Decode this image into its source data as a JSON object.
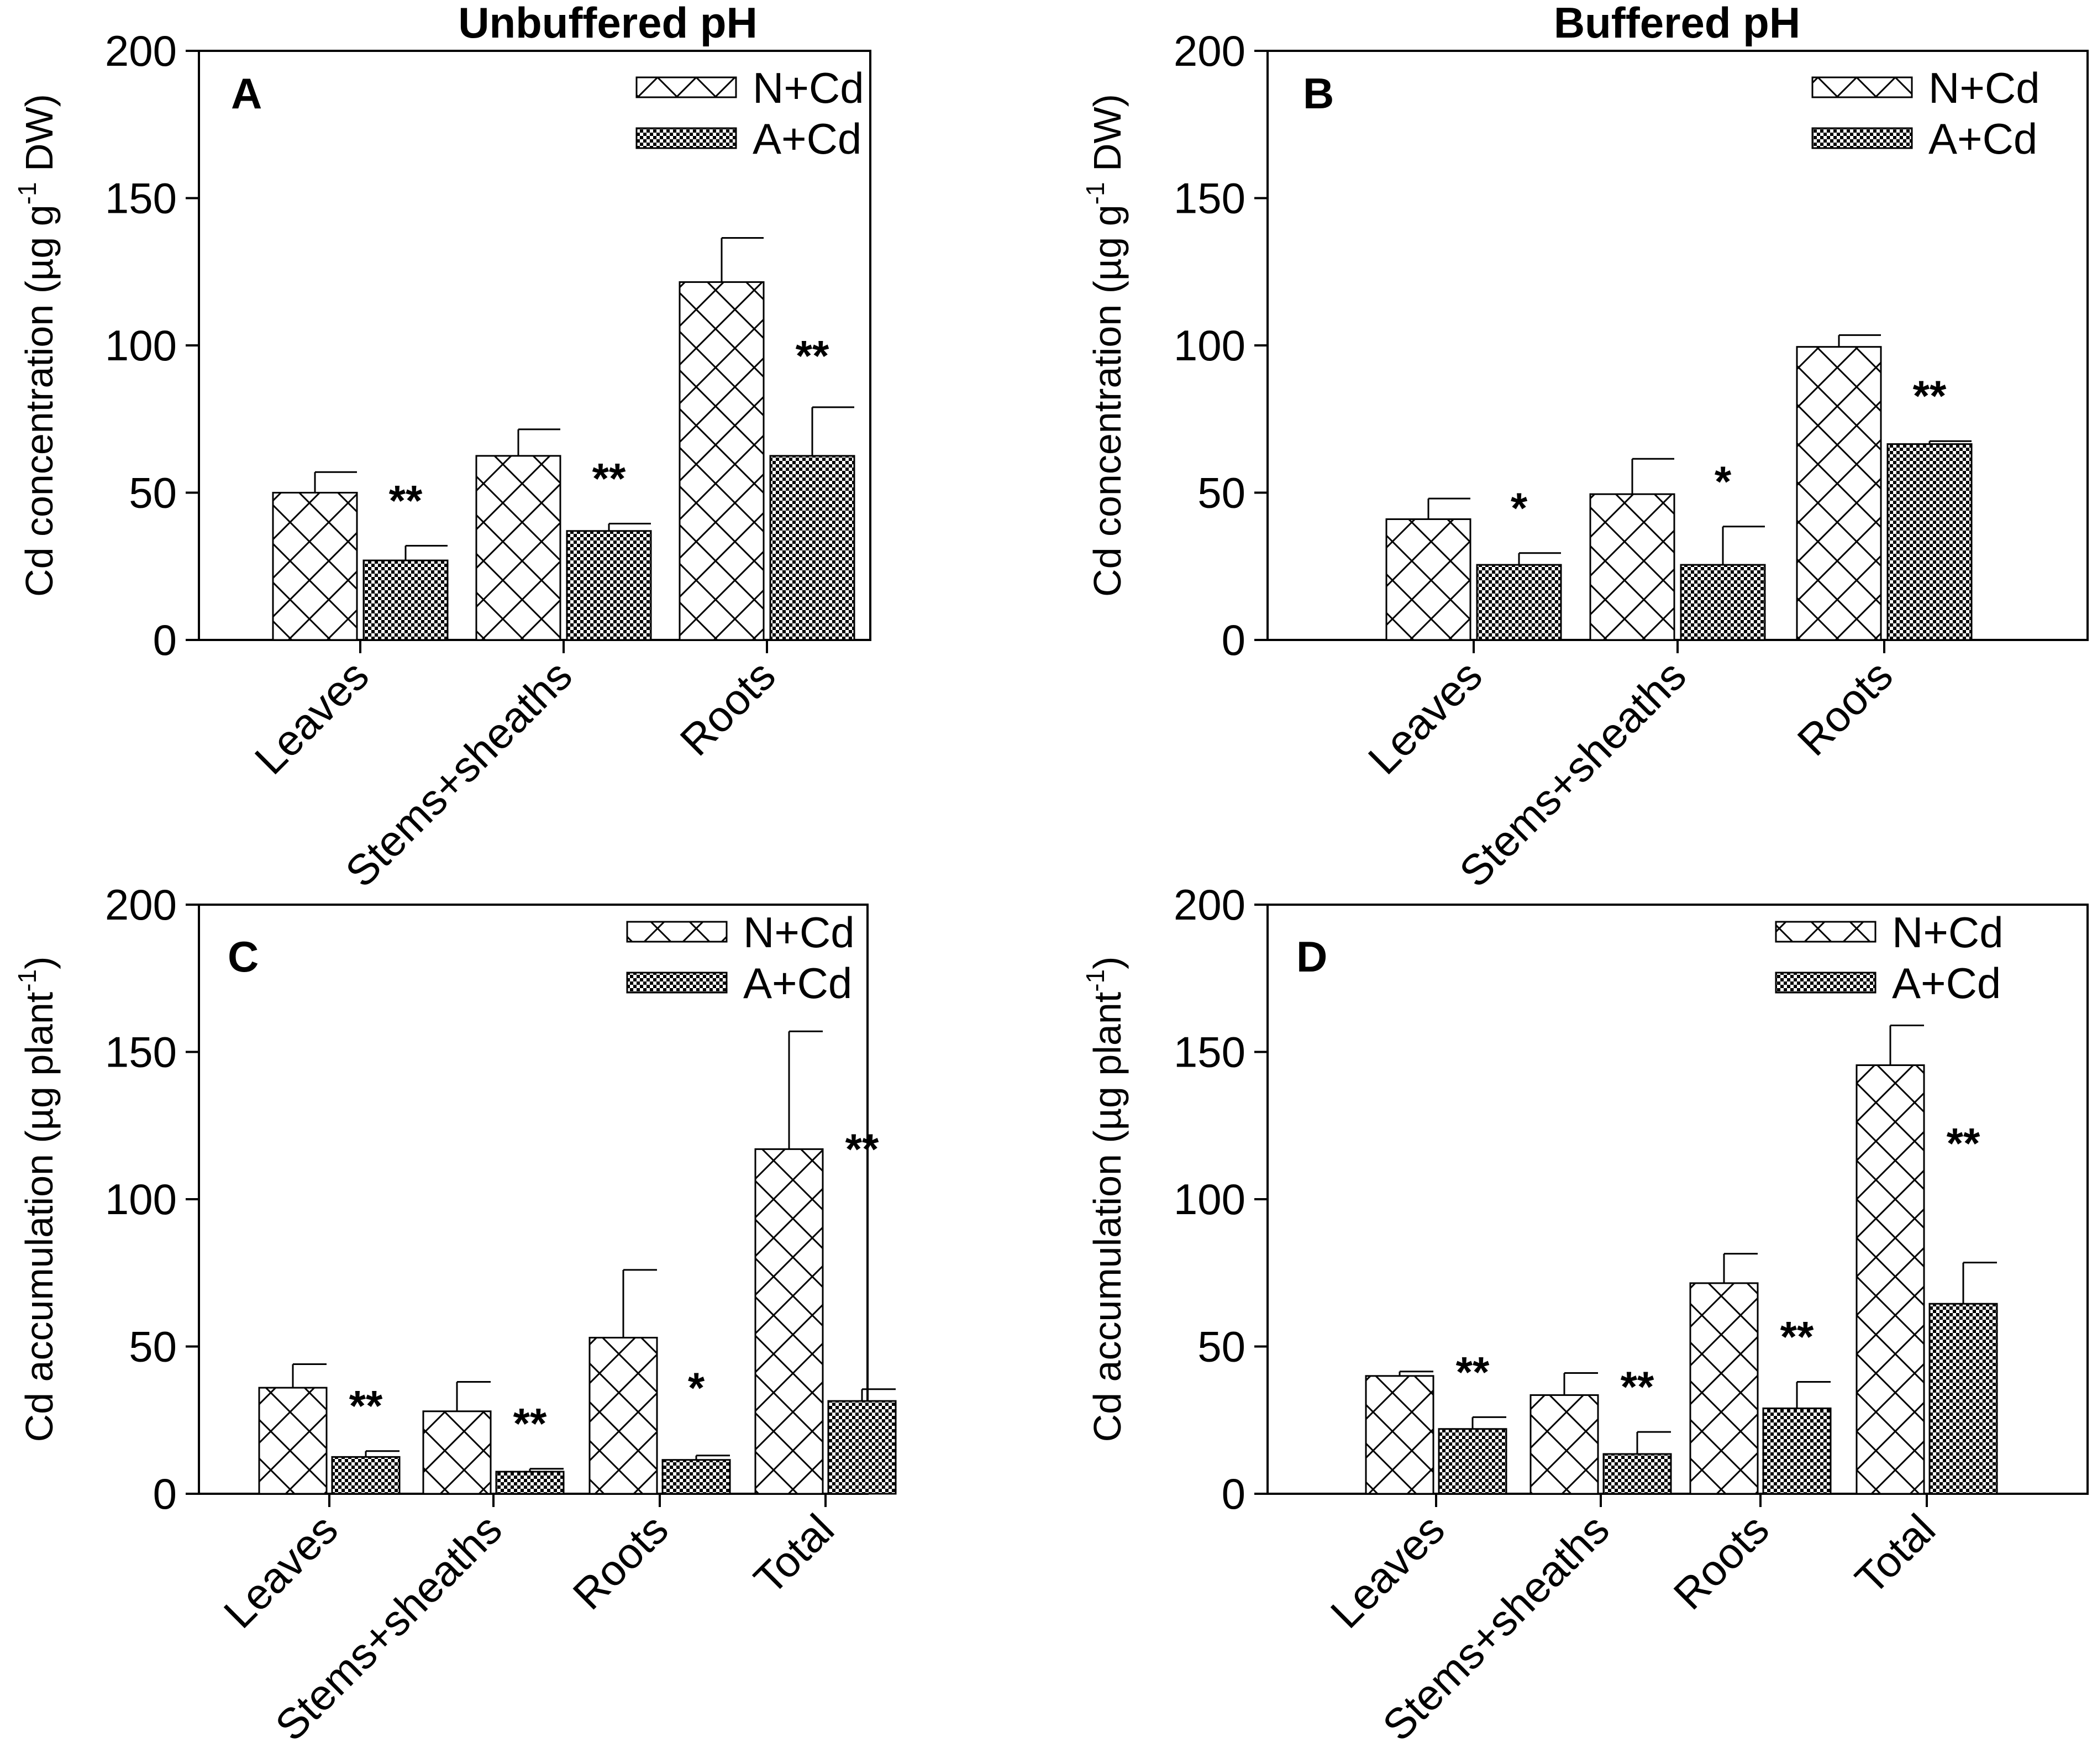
{
  "figure": {
    "column_titles": [
      "Unbuffered pH",
      "Buffered pH"
    ],
    "legend": [
      "N+Cd",
      "A+Cd"
    ]
  },
  "chart_data": [
    {
      "type": "bar",
      "panel": "A",
      "column": "Unbuffered pH",
      "ylabel": {
        "before": "Cd concentration (µg g",
        "sup": "-1",
        "after": " DW)"
      },
      "ylim": [
        0,
        200
      ],
      "yticks": [
        0,
        50,
        100,
        150,
        200
      ],
      "categories": [
        "Leaves",
        "Stems+sheaths",
        "Roots"
      ],
      "series": [
        {
          "name": "N+Cd",
          "pattern": "crosshatch",
          "values": [
            50,
            62.5,
            121.5
          ],
          "errors": [
            7,
            9,
            15
          ]
        },
        {
          "name": "A+Cd",
          "pattern": "checker",
          "values": [
            27,
            37,
            62.5
          ],
          "errors": [
            5,
            2.5,
            16.5
          ]
        }
      ],
      "annotations": [
        "**",
        "**",
        "**"
      ]
    },
    {
      "type": "bar",
      "panel": "B",
      "column": "Buffered pH",
      "ylabel": {
        "before": "Cd concentration (µg g",
        "sup": "-1",
        "after": " DW)"
      },
      "ylim": [
        0,
        200
      ],
      "yticks": [
        0,
        50,
        100,
        150,
        200
      ],
      "categories": [
        "Leaves",
        "Stems+sheaths",
        "Roots"
      ],
      "series": [
        {
          "name": "N+Cd",
          "pattern": "crosshatch",
          "values": [
            41,
            49.5,
            99.5
          ],
          "errors": [
            7,
            12,
            4
          ]
        },
        {
          "name": "A+Cd",
          "pattern": "checker",
          "values": [
            25.5,
            25.5,
            66.5
          ],
          "errors": [
            4,
            13,
            1
          ]
        }
      ],
      "annotations": [
        "*",
        "*",
        "**"
      ]
    },
    {
      "type": "bar",
      "panel": "C",
      "column": "Unbuffered pH",
      "ylabel": {
        "before": "Cd accumulation (µg plant",
        "sup": "-1",
        "after": ")"
      },
      "ylim": [
        0,
        200
      ],
      "yticks": [
        0,
        50,
        100,
        150,
        200
      ],
      "categories": [
        "Leaves",
        "Stems+sheaths",
        "Roots",
        "Total"
      ],
      "series": [
        {
          "name": "N+Cd",
          "pattern": "crosshatch",
          "values": [
            36,
            28,
            53,
            117
          ],
          "errors": [
            8,
            10,
            23,
            40
          ]
        },
        {
          "name": "A+Cd",
          "pattern": "checker",
          "values": [
            12.5,
            7.5,
            11.5,
            31.5
          ],
          "errors": [
            2,
            1,
            1.5,
            4
          ]
        }
      ],
      "annotations": [
        "**",
        "**",
        "*",
        "**"
      ]
    },
    {
      "type": "bar",
      "panel": "D",
      "column": "Buffered pH",
      "ylabel": {
        "before": "Cd accumulation (µg plant",
        "sup": "-1",
        "after": ")"
      },
      "ylim": [
        0,
        200
      ],
      "yticks": [
        0,
        50,
        100,
        150,
        200
      ],
      "categories": [
        "Leaves",
        "Stems+sheaths",
        "Roots",
        "Total"
      ],
      "series": [
        {
          "name": "N+Cd",
          "pattern": "crosshatch",
          "values": [
            40,
            33.5,
            71.5,
            145.5
          ],
          "errors": [
            1.5,
            7.5,
            10,
            13.5
          ]
        },
        {
          "name": "A+Cd",
          "pattern": "checker",
          "values": [
            22,
            13.5,
            29,
            64.5
          ],
          "errors": [
            4,
            7.5,
            9,
            14
          ]
        }
      ],
      "annotations": [
        "**",
        "**",
        "**",
        "**"
      ]
    }
  ]
}
